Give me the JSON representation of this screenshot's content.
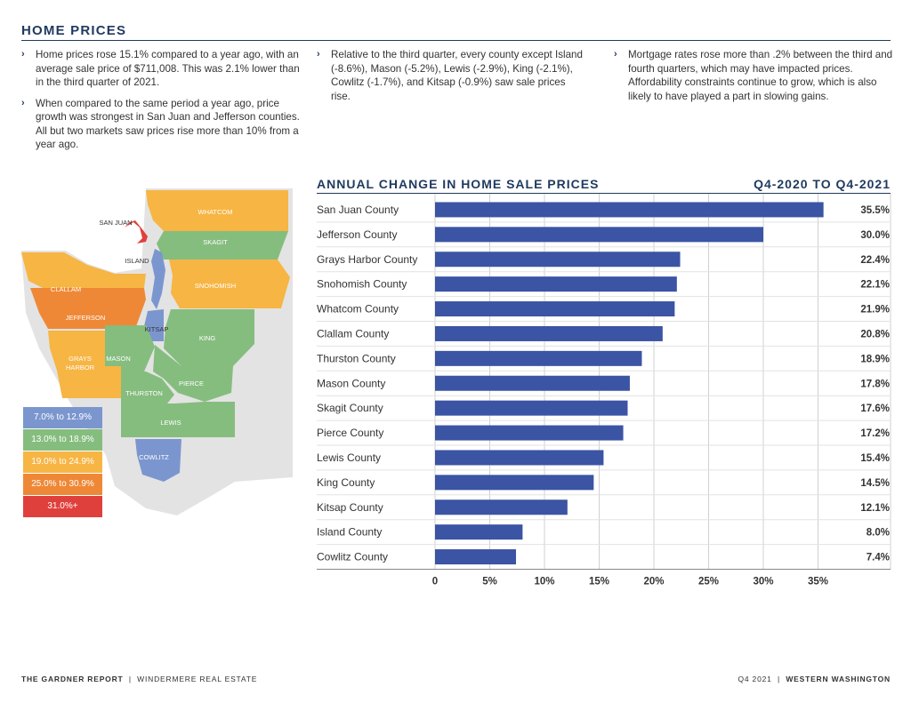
{
  "header": {
    "title": "HOME PRICES"
  },
  "bullets": {
    "col1": [
      "Home prices rose 15.1% compared to a year ago, with an average sale price of $711,008. This was 2.1% lower than in the third quarter of 2021.",
      "When compared to the same period a year ago, price growth was strongest in San Juan and Jefferson counties. All but two markets saw prices rise more than 10% from a year ago."
    ],
    "col2": [
      "Relative to the third quarter, every county except Island (-8.6%), Mason (-5.2%), Lewis (-2.9%), King (-2.1%), Cowlitz (-1.7%), and Kitsap (-0.9%) saw sale prices rise."
    ],
    "col3": [
      "Mortgage rates rose more than .2% between the third and fourth quarters, which may have impacted prices. Affordability constraints continue to grow, which is also likely to have played a part in slowing gains."
    ]
  },
  "map": {
    "labels": {
      "san_juan": "SAN JUAN",
      "whatcom": "WHATCOM",
      "skagit": "SKAGIT",
      "island": "ISLAND",
      "snohomish": "SNOHOMISH",
      "clallam": "CLALLAM",
      "jefferson": "JEFFERSON",
      "kitsap": "KITSAP",
      "king": "KING",
      "grays1": "GRAYS",
      "grays2": "HARBOR",
      "mason": "MASON",
      "pierce": "PIERCE",
      "thurston": "THURSTON",
      "lewis": "LEWIS",
      "cowlitz": "COWLITZ"
    },
    "legend": [
      {
        "label": "7.0% to 12.9%",
        "color": "#7b96cf"
      },
      {
        "label": "13.0% to 18.9%",
        "color": "#85bd7e"
      },
      {
        "label": "19.0% to 24.9%",
        "color": "#f7b544"
      },
      {
        "label": "25.0% to 30.9%",
        "color": "#ef8836"
      },
      {
        "label": "31.0%+",
        "color": "#e0403c"
      }
    ]
  },
  "chart_data": {
    "type": "bar",
    "orientation": "horizontal",
    "title": "ANNUAL CHANGE IN HOME SALE PRICES",
    "period": "Q4-2020 TO Q4-2021",
    "categories": [
      "San Juan County",
      "Jefferson County",
      "Grays Harbor County",
      "Snohomish County",
      "Whatcom County",
      "Clallam County",
      "Thurston County",
      "Mason County",
      "Skagit County",
      "Pierce County",
      "Lewis County",
      "King County",
      "Kitsap County",
      "Island County",
      "Cowlitz County"
    ],
    "values": [
      35.5,
      30.0,
      22.4,
      22.1,
      21.9,
      20.8,
      18.9,
      17.8,
      17.6,
      17.2,
      15.4,
      14.5,
      12.1,
      8.0,
      7.4
    ],
    "value_labels": [
      "35.5%",
      "30.0%",
      "22.4%",
      "22.1%",
      "21.9%",
      "20.8%",
      "18.9%",
      "17.8%",
      "17.6%",
      "17.2%",
      "15.4%",
      "14.5%",
      "12.1%",
      "8.0%",
      "7.4%"
    ],
    "xticks": [
      0,
      5,
      10,
      15,
      20,
      25,
      30,
      35
    ],
    "xtick_labels": [
      "0",
      "5%",
      "10%",
      "15%",
      "20%",
      "25%",
      "30%",
      "35%"
    ],
    "xlim": [
      0,
      40
    ],
    "bar_color": "#3b54a4",
    "grid": true
  },
  "footer": {
    "left_a": "THE GARDNER REPORT",
    "left_b": "WINDERMERE REAL ESTATE",
    "right_a": "Q4 2021",
    "right_b": "WESTERN WASHINGTON"
  }
}
